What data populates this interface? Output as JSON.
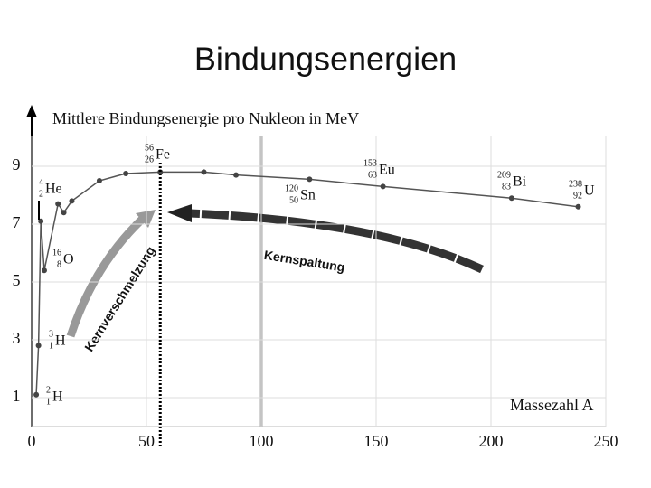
{
  "title": "Bindungsenergien",
  "chart_data": {
    "type": "line",
    "y_label": "Mittlere Bindungsenergie pro Nukleon in MeV",
    "x_label": "Massezahl A",
    "x": [
      2,
      3,
      4,
      5.5,
      11.5,
      14,
      17.5,
      29.5,
      41,
      56,
      75,
      89,
      121,
      153,
      209,
      238
    ],
    "series": [
      {
        "color": "#555555",
        "values": [
          1.1,
          2.8,
          7.1,
          5.4,
          7.7,
          7.4,
          7.8,
          8.5,
          8.75,
          8.8,
          8.8,
          8.7,
          8.55,
          8.3,
          7.9,
          7.6
        ]
      }
    ],
    "xlim": [
      0,
      250
    ],
    "xticks": [
      0,
      50,
      100,
      150,
      200,
      250
    ],
    "ylim": [
      0,
      11
    ],
    "yticks": [
      1,
      3,
      5,
      7,
      9
    ],
    "grid": true,
    "nuclides": [
      {
        "A": 2,
        "Z": 1,
        "symbol": "H"
      },
      {
        "A": 3,
        "Z": 1,
        "symbol": "H"
      },
      {
        "A": 4,
        "Z": 2,
        "symbol": "He"
      },
      {
        "A": 16,
        "Z": 8,
        "symbol": "O"
      },
      {
        "A": 56,
        "Z": 26,
        "symbol": "Fe"
      },
      {
        "A": 120,
        "Z": 50,
        "symbol": "Sn"
      },
      {
        "A": 153,
        "Z": 63,
        "symbol": "Eu"
      },
      {
        "A": 209,
        "Z": 83,
        "symbol": "Bi"
      },
      {
        "A": 238,
        "Z": 92,
        "symbol": "U"
      }
    ],
    "annotations": [
      "Kernspaltung",
      "Kernverschmelzung"
    ]
  }
}
